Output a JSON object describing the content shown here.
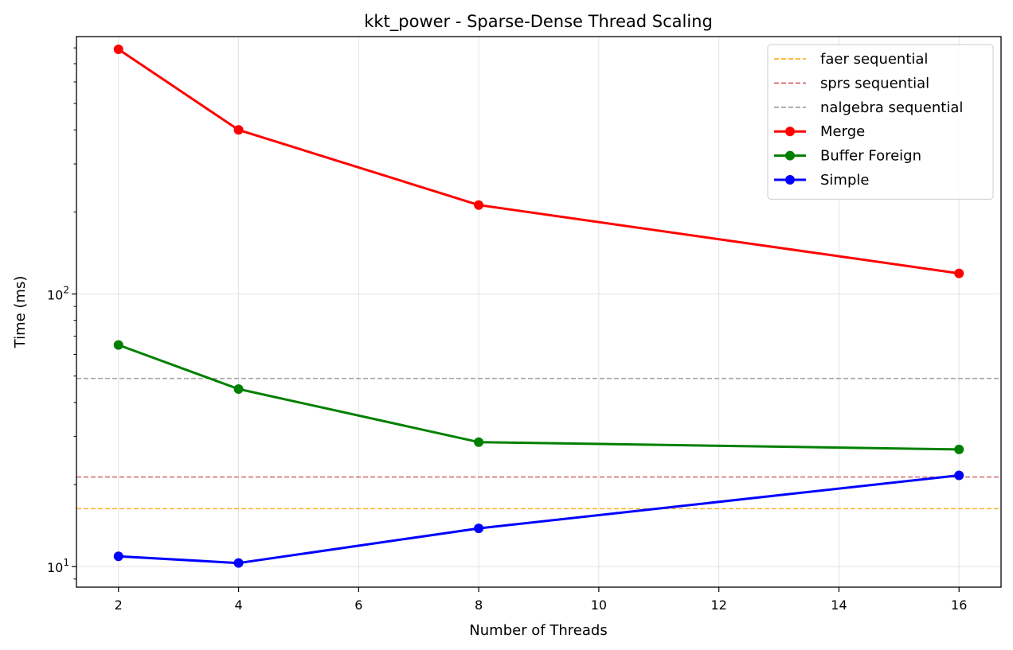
{
  "chart_data": {
    "type": "line",
    "title": "kkt_power - Sparse-Dense Thread Scaling",
    "xlabel": "Number of Threads",
    "ylabel": "Time (ms)",
    "xlim": [
      1.3,
      16.7
    ],
    "ylim": [
      8.4,
      880
    ],
    "y_scale": "log",
    "x_ticks": [
      2,
      4,
      6,
      8,
      10,
      12,
      14,
      16
    ],
    "x_tick_labels": [
      "2",
      "4",
      "6",
      "8",
      "10",
      "12",
      "14",
      "16"
    ],
    "y_major_ticks": [
      10,
      100
    ],
    "y_tick_labels": [
      {
        "base": "10",
        "exp": "1"
      },
      {
        "base": "10",
        "exp": "2"
      }
    ],
    "y_minor_ticks": [
      9,
      20,
      30,
      40,
      50,
      60,
      70,
      80,
      90,
      200,
      300,
      400,
      500,
      600,
      700,
      800
    ],
    "grid": true,
    "legend_position": "top-right",
    "x": [
      2,
      4,
      8,
      16
    ],
    "reference_lines": [
      {
        "name": "faer sequential",
        "value": 16.3,
        "color": "#FFA500"
      },
      {
        "name": "sprs sequential",
        "value": 21.3,
        "color": "#CD5C5C"
      },
      {
        "name": "nalgebra sequential",
        "value": 49,
        "color": "#999999"
      }
    ],
    "series": [
      {
        "name": "Merge",
        "color": "#FF0000",
        "values": [
          790,
          400,
          212,
          119
        ]
      },
      {
        "name": "Buffer Foreign",
        "color": "#008000",
        "values": [
          65,
          44.8,
          28.6,
          26.9
        ]
      },
      {
        "name": "Simple",
        "color": "#0000FF",
        "values": [
          10.9,
          10.3,
          13.8,
          21.6
        ]
      }
    ]
  }
}
